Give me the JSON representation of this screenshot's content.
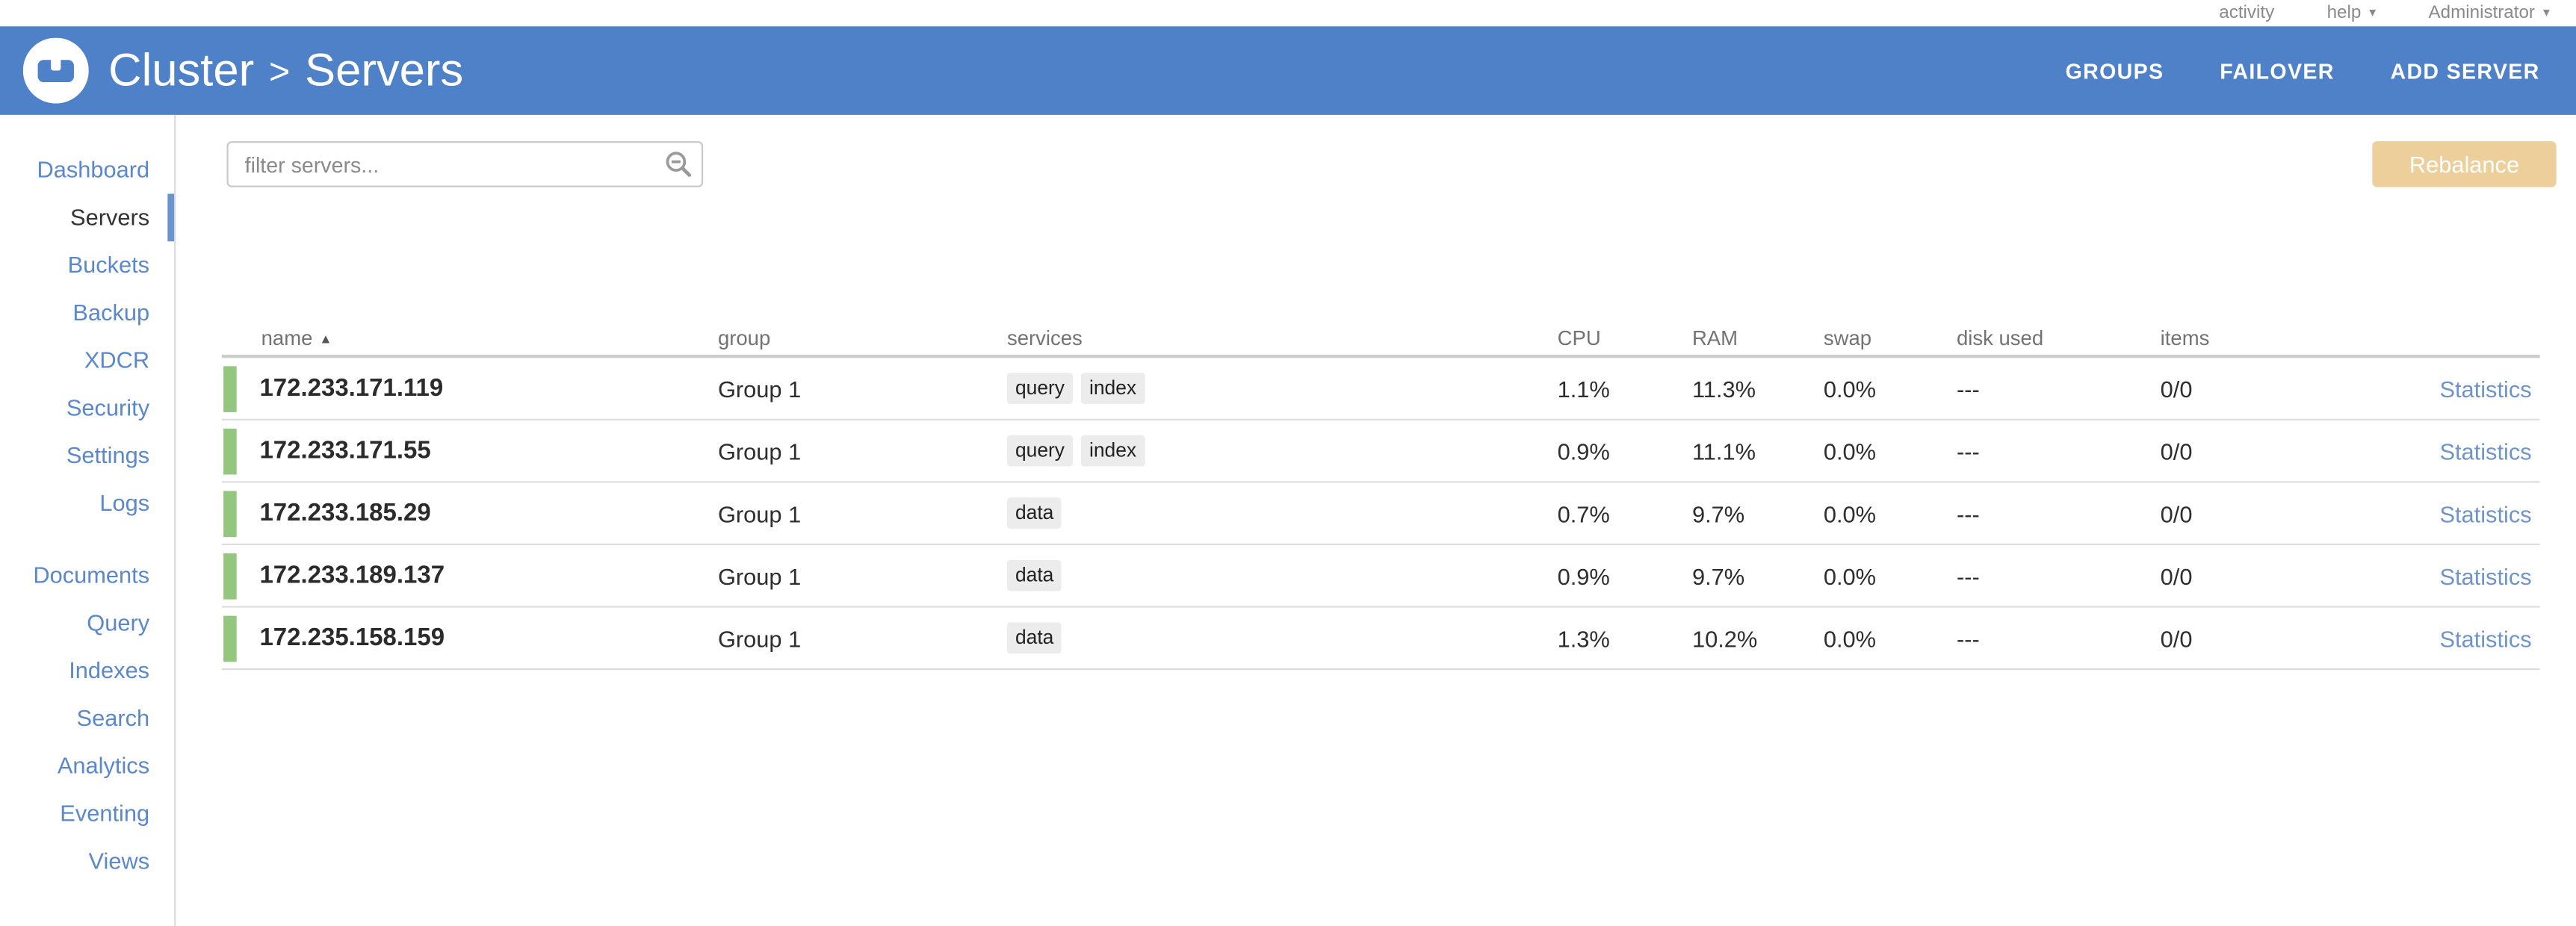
{
  "topbar": {
    "links": [
      {
        "label": "activity",
        "has_caret": false
      },
      {
        "label": "help",
        "has_caret": true
      },
      {
        "label": "Administrator",
        "has_caret": true
      }
    ]
  },
  "header": {
    "breadcrumb": {
      "cluster": "Cluster",
      "separator": ">",
      "page": "Servers"
    },
    "nav": [
      "GROUPS",
      "FAILOVER",
      "ADD SERVER"
    ]
  },
  "sidebar": {
    "groups": [
      [
        "Dashboard",
        "Servers",
        "Buckets",
        "Backup",
        "XDCR",
        "Security",
        "Settings",
        "Logs"
      ],
      [
        "Documents",
        "Query",
        "Indexes",
        "Search",
        "Analytics",
        "Eventing",
        "Views"
      ]
    ],
    "active": "Servers"
  },
  "toolbar": {
    "filter_placeholder": "filter servers...",
    "filter_value": "",
    "rebalance_label": "Rebalance"
  },
  "table": {
    "columns": [
      "name",
      "group",
      "services",
      "CPU",
      "RAM",
      "swap",
      "disk used",
      "items",
      ""
    ],
    "sort": {
      "column": "name",
      "direction": "asc",
      "icon": "▲"
    },
    "statistics_label": "Statistics",
    "rows": [
      {
        "name": "172.233.171.119",
        "group": "Group 1",
        "services": [
          "query",
          "index"
        ],
        "cpu": "1.1%",
        "ram": "11.3%",
        "swap": "0.0%",
        "disk_used": "---",
        "items": "0/0",
        "health": "healthy"
      },
      {
        "name": "172.233.171.55",
        "group": "Group 1",
        "services": [
          "query",
          "index"
        ],
        "cpu": "0.9%",
        "ram": "11.1%",
        "swap": "0.0%",
        "disk_used": "---",
        "items": "0/0",
        "health": "healthy"
      },
      {
        "name": "172.233.185.29",
        "group": "Group 1",
        "services": [
          "data"
        ],
        "cpu": "0.7%",
        "ram": "9.7%",
        "swap": "0.0%",
        "disk_used": "---",
        "items": "0/0",
        "health": "healthy"
      },
      {
        "name": "172.233.189.137",
        "group": "Group 1",
        "services": [
          "data"
        ],
        "cpu": "0.9%",
        "ram": "9.7%",
        "swap": "0.0%",
        "disk_used": "---",
        "items": "0/0",
        "health": "healthy"
      },
      {
        "name": "172.235.158.159",
        "group": "Group 1",
        "services": [
          "data"
        ],
        "cpu": "1.3%",
        "ram": "10.2%",
        "swap": "0.0%",
        "disk_used": "---",
        "items": "0/0",
        "health": "healthy"
      }
    ]
  },
  "colors": {
    "header_blue": "#4F81C8",
    "link_blue": "#5B88CB",
    "active_indicator": "#6A94CE",
    "healthy_green": "#93C77E",
    "rebalance_bg": "#ECCF9B",
    "badge_bg": "#ECECEC",
    "statistics_link": "#6E94C9"
  }
}
